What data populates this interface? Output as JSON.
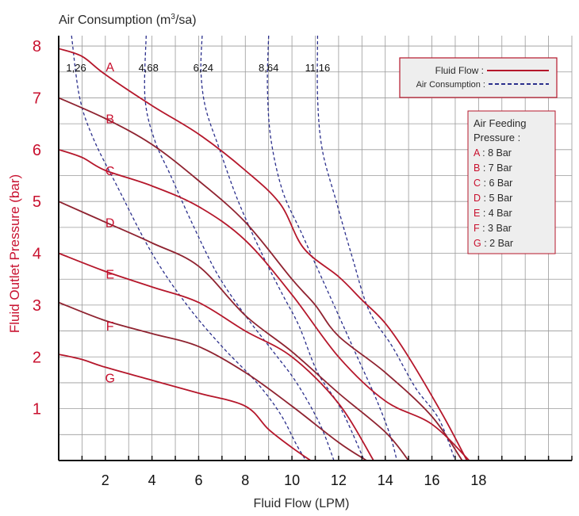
{
  "chart_data": {
    "type": "line",
    "title": "Air Consumption (m3/sa)",
    "title_parts": {
      "prefix": "Air Consumption (m",
      "sup": "3",
      "suffix": "/sa)"
    },
    "xlabel": "Fluid Flow (LPM)",
    "ylabel": "Fluid Outlet Pressure (bar)",
    "xlim": [
      0,
      22
    ],
    "ylim": [
      0,
      8.2
    ],
    "x_ticks": [
      "2",
      "4",
      "6",
      "8",
      "10",
      "12",
      "14",
      "16",
      "18"
    ],
    "y_ticks": [
      "1",
      "2",
      "3",
      "4",
      "5",
      "6",
      "7",
      "8"
    ],
    "grid": true,
    "colors": {
      "fluid_flow": "#b5172b",
      "air_consumption": "#2b2f8c",
      "label_red": "#c8102e",
      "legend_fill": "#eeeeee"
    },
    "legend": {
      "placement": "top-right",
      "fluid_flow_label": "Fluid Flow :",
      "air_consumption_label": "Air Consumption :"
    },
    "pressure_box": {
      "title_line1": "Air Feeding",
      "title_line2": "Pressure :",
      "items": [
        {
          "key": "A",
          "text": ": 8 Bar"
        },
        {
          "key": "B",
          "text": ": 7 Bar"
        },
        {
          "key": "C",
          "text": ": 6 Bar"
        },
        {
          "key": "D",
          "text": ": 5 Bar"
        },
        {
          "key": "E",
          "text": ": 4 Bar"
        },
        {
          "key": "F",
          "text": ": 3 Bar"
        },
        {
          "key": "G",
          "text": ": 2 Bar"
        }
      ]
    },
    "series": [
      {
        "name": "A",
        "label_at": [
          2.2,
          7.6
        ],
        "points": [
          [
            0,
            7.95
          ],
          [
            1,
            7.8
          ],
          [
            2,
            7.45
          ],
          [
            4,
            6.85
          ],
          [
            6,
            6.3
          ],
          [
            8,
            5.6
          ],
          [
            9.5,
            4.95
          ],
          [
            10.5,
            4.1
          ],
          [
            12,
            3.55
          ],
          [
            13,
            3.1
          ],
          [
            14,
            2.65
          ],
          [
            15,
            2.0
          ],
          [
            16.5,
            0.85
          ],
          [
            17.5,
            0.0
          ]
        ]
      },
      {
        "name": "B",
        "label_at": [
          2.2,
          6.6
        ],
        "points": [
          [
            0,
            7.0
          ],
          [
            2,
            6.6
          ],
          [
            4,
            6.1
          ],
          [
            6,
            5.4
          ],
          [
            8,
            4.6
          ],
          [
            10,
            3.5
          ],
          [
            11,
            3.0
          ],
          [
            12,
            2.4
          ],
          [
            14,
            1.7
          ],
          [
            16,
            0.85
          ],
          [
            17.3,
            0.0
          ]
        ]
      },
      {
        "name": "C",
        "label_at": [
          2.2,
          5.6
        ],
        "points": [
          [
            0,
            6.0
          ],
          [
            1,
            5.85
          ],
          [
            2,
            5.6
          ],
          [
            4,
            5.3
          ],
          [
            6,
            4.9
          ],
          [
            8,
            4.25
          ],
          [
            10,
            3.2
          ],
          [
            12,
            2.0
          ],
          [
            14,
            1.15
          ],
          [
            16,
            0.7
          ],
          [
            17.6,
            0.0
          ]
        ]
      },
      {
        "name": "D",
        "label_at": [
          2.2,
          4.6
        ],
        "points": [
          [
            0,
            5.0
          ],
          [
            2,
            4.6
          ],
          [
            4,
            4.2
          ],
          [
            6,
            3.75
          ],
          [
            8,
            2.8
          ],
          [
            10,
            2.1
          ],
          [
            12,
            1.3
          ],
          [
            14,
            0.55
          ],
          [
            15,
            0.0
          ]
        ]
      },
      {
        "name": "E",
        "label_at": [
          2.2,
          3.6
        ],
        "points": [
          [
            0,
            4.0
          ],
          [
            2,
            3.65
          ],
          [
            4,
            3.35
          ],
          [
            6,
            3.05
          ],
          [
            8,
            2.5
          ],
          [
            10,
            2.0
          ],
          [
            12,
            1.1
          ],
          [
            13.5,
            0.0
          ]
        ]
      },
      {
        "name": "F",
        "label_at": [
          2.2,
          2.6
        ],
        "points": [
          [
            0,
            3.05
          ],
          [
            2,
            2.7
          ],
          [
            4,
            2.45
          ],
          [
            6,
            2.2
          ],
          [
            8,
            1.7
          ],
          [
            10,
            1.05
          ],
          [
            12,
            0.35
          ],
          [
            13.2,
            0.0
          ]
        ]
      },
      {
        "name": "G",
        "label_at": [
          2.2,
          1.6
        ],
        "points": [
          [
            0,
            2.05
          ],
          [
            1,
            1.95
          ],
          [
            2,
            1.8
          ],
          [
            4,
            1.55
          ],
          [
            6,
            1.3
          ],
          [
            8,
            1.05
          ],
          [
            9,
            0.6
          ],
          [
            10,
            0.25
          ],
          [
            10.8,
            0.0
          ]
        ]
      }
    ],
    "air_consumption_curves": [
      {
        "label": "1,26",
        "label_x": 0.75,
        "points": [
          [
            0.55,
            8.2
          ],
          [
            0.9,
            7.0
          ],
          [
            1.5,
            6.2
          ],
          [
            2.5,
            5.3
          ],
          [
            4,
            4.0
          ],
          [
            5.5,
            3.0
          ],
          [
            7,
            2.2
          ],
          [
            8.5,
            1.5
          ],
          [
            9.5,
            0.9
          ],
          [
            10.2,
            0.3
          ],
          [
            10.6,
            0.0
          ]
        ]
      },
      {
        "label": "4,68",
        "label_x": 3.85,
        "points": [
          [
            3.75,
            8.2
          ],
          [
            3.7,
            7.0
          ],
          [
            4.1,
            6.2
          ],
          [
            4.8,
            5.5
          ],
          [
            5.7,
            4.6
          ],
          [
            6.8,
            3.6
          ],
          [
            8,
            2.8
          ],
          [
            9.2,
            2.1
          ],
          [
            10.2,
            1.5
          ],
          [
            11.2,
            0.7
          ],
          [
            11.8,
            0.0
          ]
        ]
      },
      {
        "label": "6,24",
        "label_x": 6.2,
        "points": [
          [
            6.15,
            8.2
          ],
          [
            6.1,
            7.5
          ],
          [
            6.3,
            6.8
          ],
          [
            6.9,
            6.0
          ],
          [
            7.7,
            5.0
          ],
          [
            8.7,
            4.0
          ],
          [
            9.6,
            3.2
          ],
          [
            10.3,
            2.6
          ],
          [
            11.1,
            1.7
          ],
          [
            12.1,
            1.0
          ],
          [
            13.1,
            0.0
          ]
        ]
      },
      {
        "label": "8,64",
        "label_x": 9.0,
        "points": [
          [
            9.0,
            8.2
          ],
          [
            8.95,
            7.2
          ],
          [
            9.1,
            6.2
          ],
          [
            9.6,
            5.2
          ],
          [
            10.4,
            4.4
          ],
          [
            11.2,
            3.6
          ],
          [
            12,
            2.8
          ],
          [
            12.8,
            2.0
          ],
          [
            13.6,
            1.2
          ],
          [
            14.2,
            0.5
          ],
          [
            14.5,
            0.0
          ]
        ]
      },
      {
        "label": "11,16",
        "label_x": 11.1,
        "points": [
          [
            11.1,
            8.2
          ],
          [
            11.1,
            7.0
          ],
          [
            11.3,
            6.0
          ],
          [
            11.9,
            5.0
          ],
          [
            12.6,
            3.9
          ],
          [
            13.3,
            2.9
          ],
          [
            14.3,
            2.2
          ],
          [
            15.3,
            1.4
          ],
          [
            16.3,
            0.8
          ],
          [
            17.0,
            0.0
          ]
        ]
      }
    ]
  }
}
